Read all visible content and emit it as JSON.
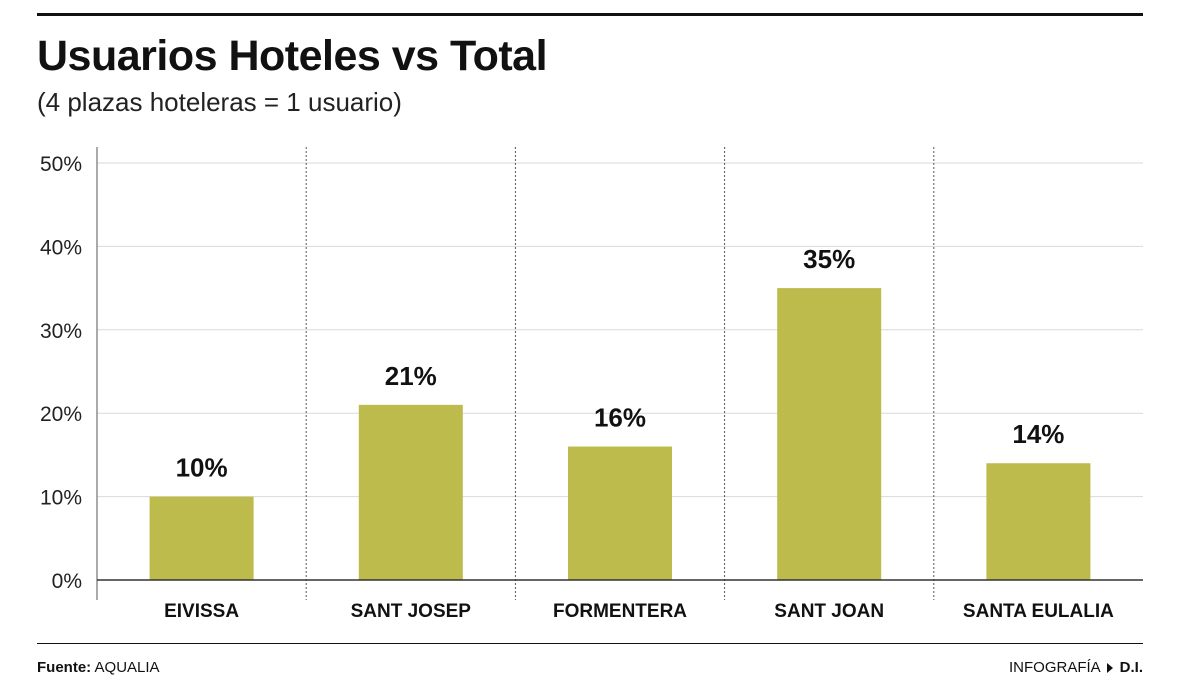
{
  "header": {
    "title": "Usuarios Hoteles vs Total",
    "subtitle": "(4 plazas hoteleras = 1 usuario)"
  },
  "chart_data": {
    "type": "bar",
    "title": "Usuarios Hoteles vs Total",
    "subtitle": "(4 plazas hoteleras = 1 usuario)",
    "xlabel": "",
    "ylabel": "",
    "categories": [
      "EIVISSA",
      "SANT JOSEP",
      "FORMENTERA",
      "SANT JOAN",
      "SANTA EULALIA"
    ],
    "values": [
      10,
      21,
      16,
      35,
      14
    ],
    "value_labels": [
      "10%",
      "21%",
      "16%",
      "35%",
      "14%"
    ],
    "ylim": [
      0,
      50
    ],
    "yticks": [
      0,
      10,
      20,
      30,
      40,
      50
    ],
    "ytick_labels": [
      "0%",
      "10%",
      "20%",
      "30%",
      "40%",
      "50%"
    ],
    "grid": true,
    "bar_color": "#bcbb4b",
    "grid_color": "#d9d9d9",
    "separator_style": "dotted"
  },
  "footer": {
    "source_label": "Fuente:",
    "source_value": "AQUALIA",
    "credit_label": "INFOGRAFÍA",
    "credit_brand": "D.I.",
    "arrow_icon": "triangle-right-icon"
  }
}
